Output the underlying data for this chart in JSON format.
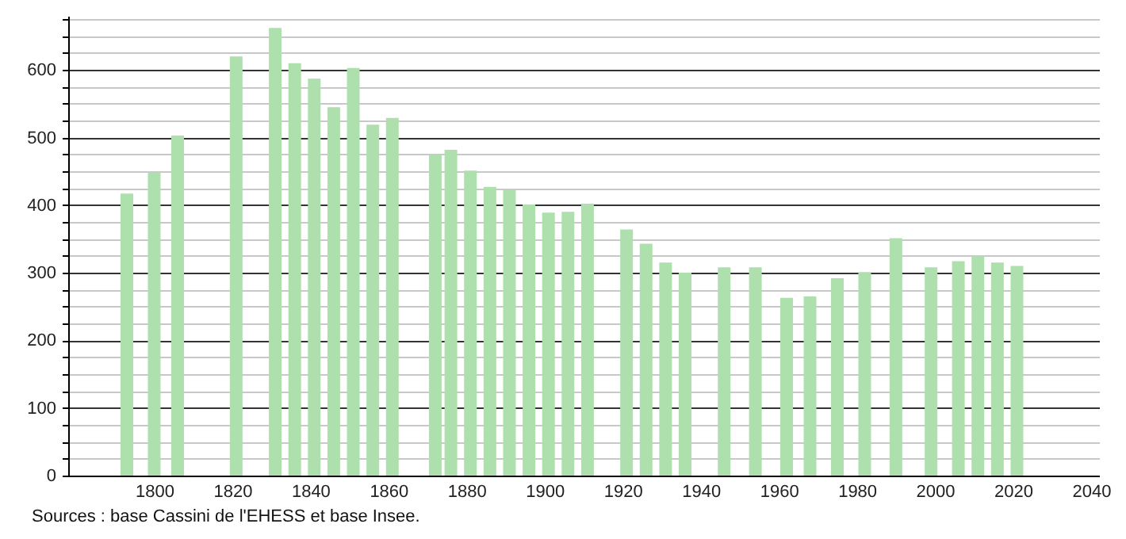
{
  "chart_data": {
    "type": "bar",
    "annotations": [
      "Sources : base Cassini de l'EHESS et base Insee."
    ],
    "x": [
      1793,
      1800,
      1806,
      1821,
      1831,
      1836,
      1841,
      1846,
      1851,
      1856,
      1861,
      1872,
      1876,
      1881,
      1886,
      1891,
      1896,
      1901,
      1906,
      1911,
      1921,
      1926,
      1931,
      1936,
      1946,
      1954,
      1962,
      1968,
      1975,
      1982,
      1990,
      1999,
      2006,
      2011,
      2016,
      2021
    ],
    "series": [
      {
        "color": "#aee0ae",
        "values": [
          417,
          449,
          503,
          620,
          662,
          610,
          587,
          545,
          603,
          519,
          529,
          475,
          482,
          451,
          427,
          423,
          401,
          389,
          390,
          402,
          364,
          343,
          315,
          300,
          308,
          308,
          263,
          265,
          292,
          301,
          351,
          308,
          317,
          325,
          315,
          310
        ]
      }
    ],
    "xlim": [
      1780,
      2040
    ],
    "xticks": [
      1800,
      1820,
      1840,
      1860,
      1880,
      1900,
      1920,
      1940,
      1960,
      1980,
      2000,
      2020,
      2040
    ],
    "ylim": [
      0,
      680
    ],
    "yticks": [
      0,
      {
        "value": 25,
        "label": null
      },
      {
        "value": 50,
        "label": null
      },
      {
        "value": 75,
        "label": null
      },
      100,
      {
        "value": 125,
        "label": null
      },
      {
        "value": 150,
        "label": null
      },
      {
        "value": 175,
        "label": null
      },
      200,
      {
        "value": 225,
        "label": null
      },
      {
        "value": 250,
        "label": null
      },
      {
        "value": 275,
        "label": null
      },
      300,
      {
        "value": 325,
        "label": null
      },
      {
        "value": 350,
        "label": null
      },
      {
        "value": 375,
        "label": null
      },
      400,
      {
        "value": 425,
        "label": null
      },
      {
        "value": 450,
        "label": null
      },
      {
        "value": 475,
        "label": null
      },
      500,
      {
        "value": 525,
        "label": null
      },
      {
        "value": 550,
        "label": null
      },
      {
        "value": 575,
        "label": null
      },
      600,
      {
        "value": 625,
        "label": null
      },
      {
        "value": 650,
        "label": null
      },
      {
        "value": 675,
        "label": null
      }
    ],
    "grid": "y"
  }
}
